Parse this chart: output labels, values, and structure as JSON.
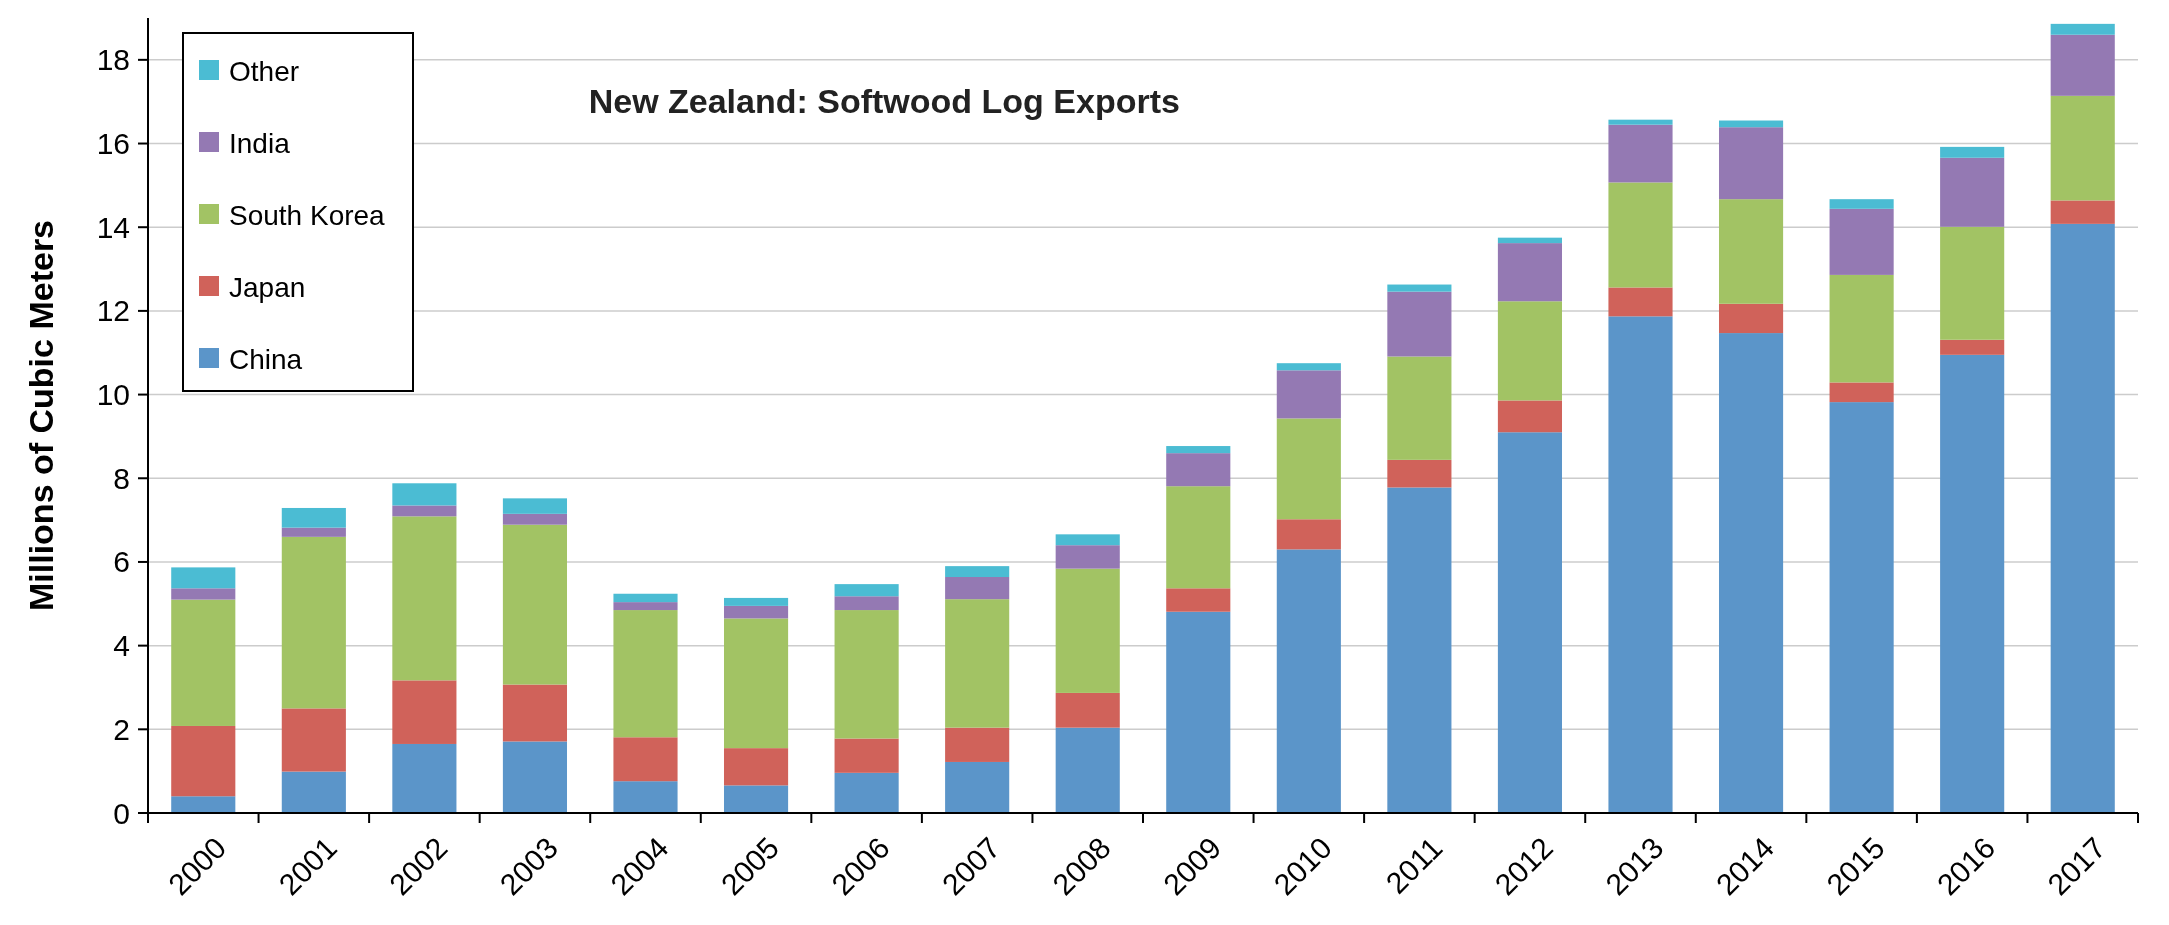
{
  "chart_data": {
    "type": "bar",
    "stacked": true,
    "title": "New Zealand: Softwood Log Exports",
    "ylabel": "Millions of Cubic Meters",
    "categories": [
      "2000",
      "2001",
      "2002",
      "2003",
      "2004",
      "2005",
      "2006",
      "2007",
      "2008",
      "2009",
      "2010",
      "2011",
      "2012",
      "2013",
      "2014",
      "2015",
      "2016",
      "2017"
    ],
    "series": [
      {
        "name": "China",
        "color": "#5b95c9",
        "values": [
          0.4,
          0.99,
          1.65,
          1.71,
          0.76,
          0.66,
          0.96,
          1.22,
          2.04,
          4.81,
          6.3,
          7.78,
          9.1,
          11.87,
          11.47,
          9.82,
          10.95,
          14.08
        ]
      },
      {
        "name": "Japan",
        "color": "#d0625a",
        "values": [
          1.68,
          1.51,
          1.52,
          1.36,
          1.05,
          0.89,
          0.82,
          0.82,
          0.83,
          0.56,
          0.72,
          0.66,
          0.76,
          0.69,
          0.7,
          0.47,
          0.36,
          0.56
        ]
      },
      {
        "name": "South Korea",
        "color": "#a2c364",
        "values": [
          3.02,
          4.1,
          3.92,
          3.82,
          3.04,
          3.1,
          3.07,
          3.07,
          2.97,
          2.44,
          2.41,
          2.47,
          2.37,
          2.51,
          2.5,
          2.57,
          2.7,
          2.5
        ]
      },
      {
        "name": "India",
        "color": "#9479b3",
        "values": [
          0.27,
          0.22,
          0.26,
          0.26,
          0.19,
          0.3,
          0.33,
          0.53,
          0.56,
          0.79,
          1.15,
          1.55,
          1.39,
          1.38,
          1.72,
          1.58,
          1.65,
          1.46
        ]
      },
      {
        "name": "Other",
        "color": "#4bbcd3",
        "values": [
          0.5,
          0.47,
          0.53,
          0.37,
          0.2,
          0.19,
          0.29,
          0.26,
          0.26,
          0.17,
          0.17,
          0.17,
          0.13,
          0.12,
          0.16,
          0.23,
          0.26,
          0.26
        ]
      }
    ],
    "ylim": [
      0,
      19
    ],
    "yticks": [
      0,
      2,
      4,
      6,
      8,
      10,
      12,
      14,
      16,
      18
    ],
    "grid": "y",
    "legend": "top left"
  }
}
